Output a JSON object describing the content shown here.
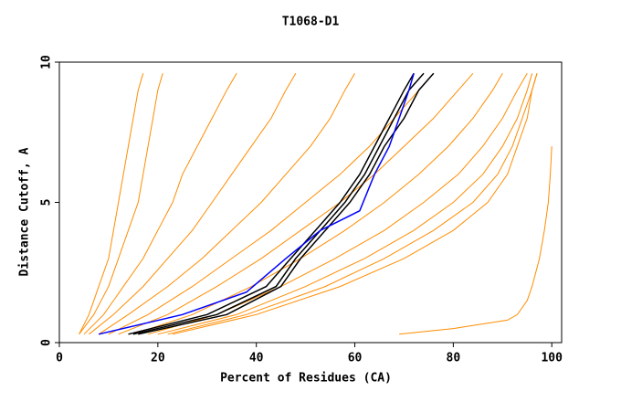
{
  "chart_data": {
    "type": "line",
    "title": "T1068-D1",
    "x_label": "Percent of Residues (CA)",
    "y_label": "Distance Cutoff, A",
    "xlim": [
      0,
      102
    ],
    "ylim": [
      0,
      10
    ],
    "xticks": [
      0,
      20,
      40,
      60,
      80,
      100
    ],
    "yticks": [
      0,
      5,
      10
    ],
    "series": [
      {
        "color": "#ff8c00",
        "x": [
          4,
          6,
          8,
          10,
          11,
          12,
          13,
          14,
          15,
          16,
          17
        ],
        "values": [
          0.3,
          1,
          2,
          3,
          4,
          5,
          6,
          7,
          8,
          9,
          9.6
        ]
      },
      {
        "color": "#ff8c00",
        "x": [
          4,
          7,
          10,
          12,
          14,
          16,
          17,
          18,
          19,
          20,
          21
        ],
        "values": [
          0.3,
          1,
          2,
          3,
          4,
          5,
          6,
          7,
          8,
          9,
          9.6
        ]
      },
      {
        "color": "#ff8c00",
        "x": [
          5,
          9,
          13,
          17,
          20,
          23,
          25,
          28,
          31,
          34,
          36
        ],
        "values": [
          0.3,
          1,
          2,
          3,
          4,
          5,
          6,
          7,
          8,
          9,
          9.6
        ]
      },
      {
        "color": "#ff8c00",
        "x": [
          6,
          11,
          17,
          22,
          27,
          31,
          35,
          39,
          43,
          46,
          48
        ],
        "values": [
          0.3,
          1,
          2,
          3,
          4,
          5,
          6,
          7,
          8,
          9,
          9.6
        ]
      },
      {
        "color": "#ff8c00",
        "x": [
          8,
          14,
          22,
          29,
          35,
          41,
          46,
          51,
          55,
          58,
          60
        ],
        "values": [
          0.3,
          1,
          2,
          3,
          4,
          5,
          6,
          7,
          8,
          9,
          9.6
        ]
      },
      {
        "color": "#ff8c00",
        "x": [
          10,
          18,
          27,
          35,
          43,
          50,
          57,
          63,
          68,
          73,
          76
        ],
        "values": [
          0.3,
          1,
          2,
          3,
          4,
          5,
          6,
          7,
          8,
          9,
          9.6
        ]
      },
      {
        "color": "#ff8c00",
        "x": [
          12,
          22,
          32,
          41,
          49,
          57,
          64,
          70,
          76,
          81,
          84
        ],
        "values": [
          0.3,
          1,
          2,
          3,
          4,
          5,
          6,
          7,
          8,
          9,
          9.6
        ]
      },
      {
        "color": "#ff8c00",
        "x": [
          15,
          27,
          39,
          49,
          58,
          66,
          73,
          79,
          84,
          88,
          90
        ],
        "values": [
          0.3,
          1,
          2,
          3,
          4,
          5,
          6,
          7,
          8,
          9,
          9.6
        ]
      },
      {
        "color": "#ff8c00",
        "x": [
          18,
          32,
          45,
          56,
          66,
          74,
          81,
          86,
          90,
          93,
          95
        ],
        "values": [
          0.3,
          1,
          2,
          3,
          4,
          5,
          6,
          7,
          8,
          9,
          9.6
        ]
      },
      {
        "color": "#ff8c00",
        "x": [
          20,
          36,
          50,
          62,
          72,
          80,
          86,
          90,
          93,
          95,
          96
        ],
        "values": [
          0.3,
          1,
          2,
          3,
          4,
          5,
          6,
          7,
          8,
          9,
          9.6
        ]
      },
      {
        "color": "#ff8c00",
        "x": [
          22,
          38,
          54,
          66,
          76,
          84,
          89,
          92,
          94,
          96,
          97
        ],
        "values": [
          0.3,
          1,
          2,
          3,
          4,
          5,
          6,
          7,
          8,
          9,
          9.6
        ]
      },
      {
        "color": "#ff8c00",
        "x": [
          23,
          40,
          57,
          70,
          80,
          87,
          91,
          93,
          95,
          96,
          97
        ],
        "values": [
          0.3,
          1,
          2,
          3,
          4,
          5,
          6,
          7,
          8,
          9,
          9.6
        ]
      },
      {
        "color": "#ff8c00",
        "x": [
          69,
          80,
          91,
          93,
          95,
          96,
          97.5,
          98.5,
          99.3,
          99.7,
          100
        ],
        "values": [
          0.3,
          0.5,
          0.8,
          1,
          1.5,
          2,
          3,
          4,
          5,
          6,
          7
        ]
      },
      {
        "color": "#000000",
        "x": [
          14,
          30,
          42,
          47,
          52,
          57,
          61,
          64,
          67,
          70,
          72
        ],
        "values": [
          0.3,
          1,
          2,
          3,
          4,
          5,
          6,
          7,
          8,
          9,
          9.6
        ]
      },
      {
        "color": "#000000",
        "x": [
          15,
          32,
          44,
          48,
          53,
          58,
          62,
          65,
          68,
          71,
          74
        ],
        "values": [
          0.3,
          1,
          2,
          3,
          4,
          5,
          6,
          7,
          8,
          9,
          9.6
        ]
      },
      {
        "color": "#000000",
        "x": [
          16,
          34,
          45,
          49,
          54,
          59,
          63,
          66,
          70,
          73,
          76
        ],
        "values": [
          0.3,
          1,
          2,
          3,
          4,
          5,
          6,
          7,
          8,
          9,
          9.6
        ]
      },
      {
        "color": "#0000ff",
        "x": [
          8,
          25,
          38,
          46,
          53,
          61,
          64,
          67,
          69,
          71,
          72
        ],
        "values": [
          0.3,
          1,
          1.8,
          3,
          4,
          4.7,
          6,
          7,
          8,
          9,
          9.6
        ]
      }
    ]
  }
}
